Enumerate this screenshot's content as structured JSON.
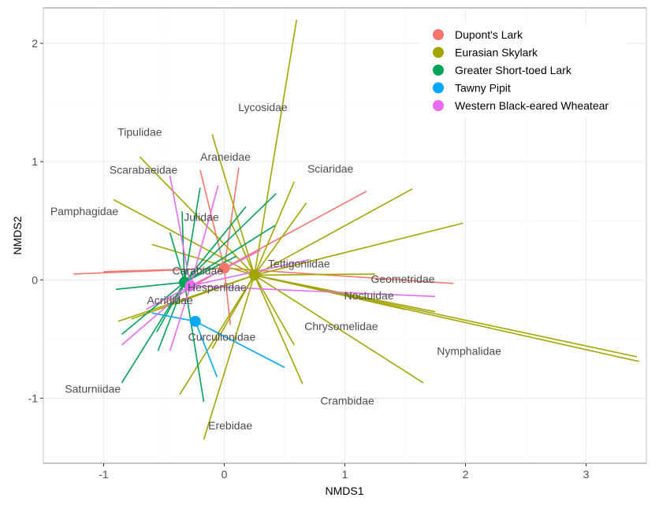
{
  "chart_data": {
    "type": "scatter",
    "xlabel": "NMDS1",
    "ylabel": "NMDS2",
    "xlim": [
      -1.5,
      3.5
    ],
    "ylim": [
      -1.55,
      2.3
    ],
    "x_ticks": [
      -1,
      0,
      1,
      2,
      3
    ],
    "x_tick_labels": [
      "-1",
      "0",
      "1",
      "2",
      "3"
    ],
    "y_ticks": [
      -1,
      0,
      1,
      2
    ],
    "y_tick_labels": [
      "-1",
      "0",
      "1",
      "2"
    ],
    "grid": true,
    "legend_position": "top-right",
    "series": [
      {
        "name": "Dupont's Lark",
        "color": "#F8766D",
        "centroid": [
          0.0,
          0.1
        ],
        "spokes": [
          [
            -1.25,
            0.05
          ],
          [
            -1.0,
            0.07
          ],
          [
            -0.2,
            0.93
          ],
          [
            0.12,
            0.95
          ],
          [
            1.18,
            0.75
          ],
          [
            1.9,
            -0.03
          ],
          [
            0.05,
            -0.38
          ],
          [
            -0.5,
            -0.2
          ]
        ]
      },
      {
        "name": "Eurasian Skylark",
        "color": "#A3A500",
        "centroid": [
          0.25,
          0.04
        ],
        "spokes": [
          [
            0.6,
            2.2
          ],
          [
            -0.1,
            1.23
          ],
          [
            -0.7,
            1.04
          ],
          [
            -0.92,
            0.68
          ],
          [
            0.58,
            0.83
          ],
          [
            0.68,
            0.65
          ],
          [
            1.56,
            0.77
          ],
          [
            1.98,
            0.48
          ],
          [
            1.75,
            -0.27
          ],
          [
            3.42,
            -0.65
          ],
          [
            3.44,
            -0.69
          ],
          [
            1.65,
            -0.87
          ],
          [
            0.65,
            -0.88
          ],
          [
            0.58,
            -0.55
          ],
          [
            -0.37,
            -0.97
          ],
          [
            -0.17,
            -1.35
          ],
          [
            -0.88,
            -0.35
          ],
          [
            -0.77,
            -0.33
          ],
          [
            0.05,
            0.5
          ],
          [
            -0.1,
            -0.58
          ],
          [
            1.25,
            0.05
          ],
          [
            1.5,
            -0.25
          ],
          [
            -0.6,
            0.3
          ]
        ]
      },
      {
        "name": "Greater Short-toed Lark",
        "color": "#00A25A",
        "centroid": [
          -0.33,
          -0.02
        ],
        "spokes": [
          [
            -0.85,
            -0.87
          ],
          [
            -0.85,
            -0.46
          ],
          [
            -0.56,
            -0.44
          ],
          [
            -0.17,
            -1.03
          ],
          [
            -0.2,
            0.78
          ],
          [
            -0.35,
            0.58
          ],
          [
            0.18,
            0.62
          ],
          [
            0.42,
            0.46
          ],
          [
            0.43,
            0.73
          ],
          [
            -0.9,
            -0.08
          ],
          [
            0.1,
            0.2
          ],
          [
            -0.45,
            0.4
          ],
          [
            -0.55,
            -0.6
          ]
        ]
      },
      {
        "name": "Tawny Pipit",
        "color": "#00A9FF",
        "centroid": [
          -0.24,
          -0.35
        ],
        "spokes": [
          [
            0.5,
            -0.74
          ],
          [
            -0.6,
            -0.28
          ],
          [
            -0.06,
            -0.82
          ]
        ]
      },
      {
        "name": "Western Black-eared Wheatear",
        "color": "#E76BF3",
        "centroid": [
          -0.28,
          -0.05
        ],
        "spokes": [
          [
            -0.45,
            0.88
          ],
          [
            -0.05,
            0.8
          ],
          [
            -0.85,
            -0.55
          ],
          [
            -0.45,
            -0.6
          ],
          [
            1.75,
            -0.14
          ],
          [
            0.3,
            0.25
          ],
          [
            -0.65,
            -0.25
          ],
          [
            0.7,
            0.17
          ]
        ]
      }
    ],
    "taxon_labels": [
      {
        "text": "Lycosidae",
        "x": 0.32,
        "y": 1.46
      },
      {
        "text": "Tipulidae",
        "x": -0.7,
        "y": 1.25
      },
      {
        "text": "Araneidae",
        "x": 0.01,
        "y": 1.04
      },
      {
        "text": "Sciaridae",
        "x": 0.88,
        "y": 0.94
      },
      {
        "text": "Scarabaeidae",
        "x": -0.67,
        "y": 0.93
      },
      {
        "text": "Pamphagidae",
        "x": -1.16,
        "y": 0.58
      },
      {
        "text": "Julidae",
        "x": -0.19,
        "y": 0.53
      },
      {
        "text": "Tettigoniidae",
        "x": 0.62,
        "y": 0.14
      },
      {
        "text": "Carabidae",
        "x": -0.22,
        "y": 0.08
      },
      {
        "text": "Geometridae",
        "x": 1.48,
        "y": 0.01
      },
      {
        "text": "Hesperiidae",
        "x": -0.06,
        "y": -0.06
      },
      {
        "text": "Noctuidae",
        "x": 1.2,
        "y": -0.13
      },
      {
        "text": "Acrididae",
        "x": -0.45,
        "y": -0.17
      },
      {
        "text": "Chrysomelidae",
        "x": 0.97,
        "y": -0.39
      },
      {
        "text": "Curculionidae",
        "x": -0.02,
        "y": -0.48
      },
      {
        "text": "Nymphalidae",
        "x": 2.03,
        "y": -0.6
      },
      {
        "text": "Saturniidae",
        "x": -1.09,
        "y": -0.92
      },
      {
        "text": "Crambidae",
        "x": 1.02,
        "y": -1.02
      },
      {
        "text": "Erebidae",
        "x": 0.05,
        "y": -1.23
      }
    ]
  }
}
